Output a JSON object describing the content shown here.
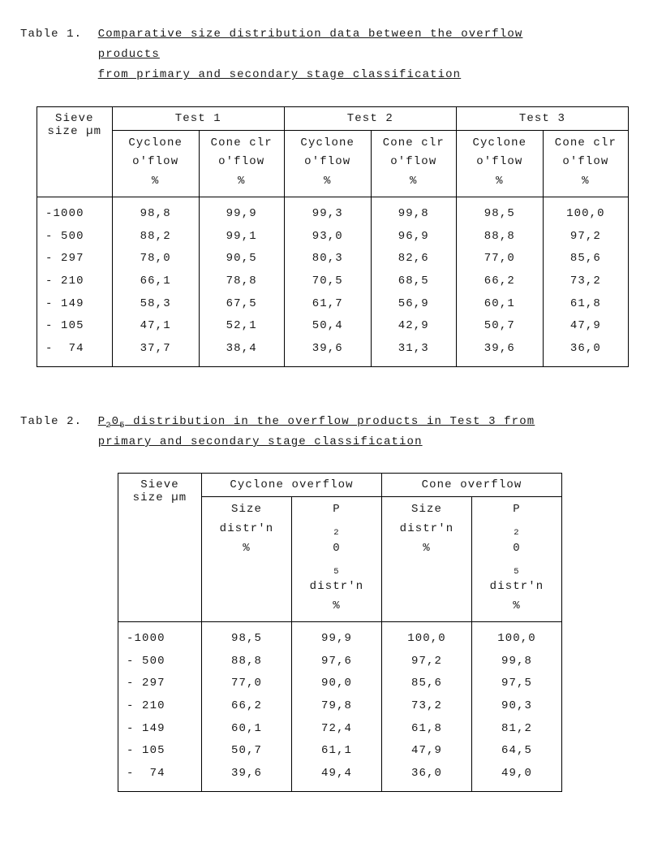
{
  "table1": {
    "label": "Table 1.",
    "title_l1": "Comparative size distribution data between the overflow products",
    "title_l2": "from primary and secondary stage classification",
    "group_headers": [
      "Test 1",
      "Test 2",
      "Test 3"
    ],
    "sieve_header": [
      "Sieve",
      "size",
      "µm"
    ],
    "cyclone_header": [
      "Cyclone",
      "o'flow",
      "%"
    ],
    "cone_header": [
      "Cone clr",
      "o'flow",
      "%"
    ],
    "sieve": [
      "-1000",
      "- 500",
      "- 297",
      "- 210",
      "- 149",
      "- 105",
      "-  74"
    ],
    "t1_cyc": [
      "98,8",
      "88,2",
      "78,0",
      "66,1",
      "58,3",
      "47,1",
      "37,7"
    ],
    "t1_con": [
      "99,9",
      "99,1",
      "90,5",
      "78,8",
      "67,5",
      "52,1",
      "38,4"
    ],
    "t2_cyc": [
      "99,3",
      "93,0",
      "80,3",
      "70,5",
      "61,7",
      "50,4",
      "39,6"
    ],
    "t2_con": [
      "99,8",
      "96,9",
      "82,6",
      "68,5",
      "56,9",
      "42,9",
      "31,3"
    ],
    "t3_cyc": [
      "98,5",
      "88,8",
      "77,0",
      "66,2",
      "60,1",
      "50,7",
      "39,6"
    ],
    "t3_con": [
      "100,0",
      "97,2",
      "85,6",
      "73,2",
      "61,8",
      "47,9",
      "36,0"
    ],
    "border_color": "#000000",
    "text_color": "#1a1a1a",
    "background_color": "#ffffff",
    "font_size_pt": 11
  },
  "table2": {
    "label": "Table 2.",
    "title_l1_pre": "P",
    "title_l1_sub1": "2",
    "title_l1_mid": "0",
    "title_l1_sub2": "5",
    "title_l1_post": " distribution in the overflow products in Test 3 from",
    "title_l2": "primary and secondary stage classification",
    "group_headers": [
      "Cyclone overflow",
      "Cone overflow"
    ],
    "sieve_header": [
      "Sieve",
      "size",
      "µm"
    ],
    "size_header": [
      "Size",
      "distr'n",
      "%"
    ],
    "p2o5_header_pre": "P",
    "p2o5_header_sub1": "2",
    "p2o5_header_mid": "0",
    "p2o5_header_sub2": "5",
    "p2o5_header_l2": "distr'n",
    "p2o5_header_l3": "%",
    "sieve": [
      "-1000",
      "- 500",
      "- 297",
      "- 210",
      "- 149",
      "- 105",
      "-  74"
    ],
    "cyc_size": [
      "98,5",
      "88,8",
      "77,0",
      "66,2",
      "60,1",
      "50,7",
      "39,6"
    ],
    "cyc_p": [
      "99,9",
      "97,6",
      "90,0",
      "79,8",
      "72,4",
      "61,1",
      "49,4"
    ],
    "con_size": [
      "100,0",
      "97,2",
      "85,6",
      "73,2",
      "61,8",
      "47,9",
      "36,0"
    ],
    "con_p": [
      "100,0",
      "99,8",
      "97,5",
      "90,3",
      "81,2",
      "64,5",
      "49,0"
    ],
    "border_color": "#000000",
    "text_color": "#1a1a1a",
    "background_color": "#ffffff",
    "font_size_pt": 11
  }
}
